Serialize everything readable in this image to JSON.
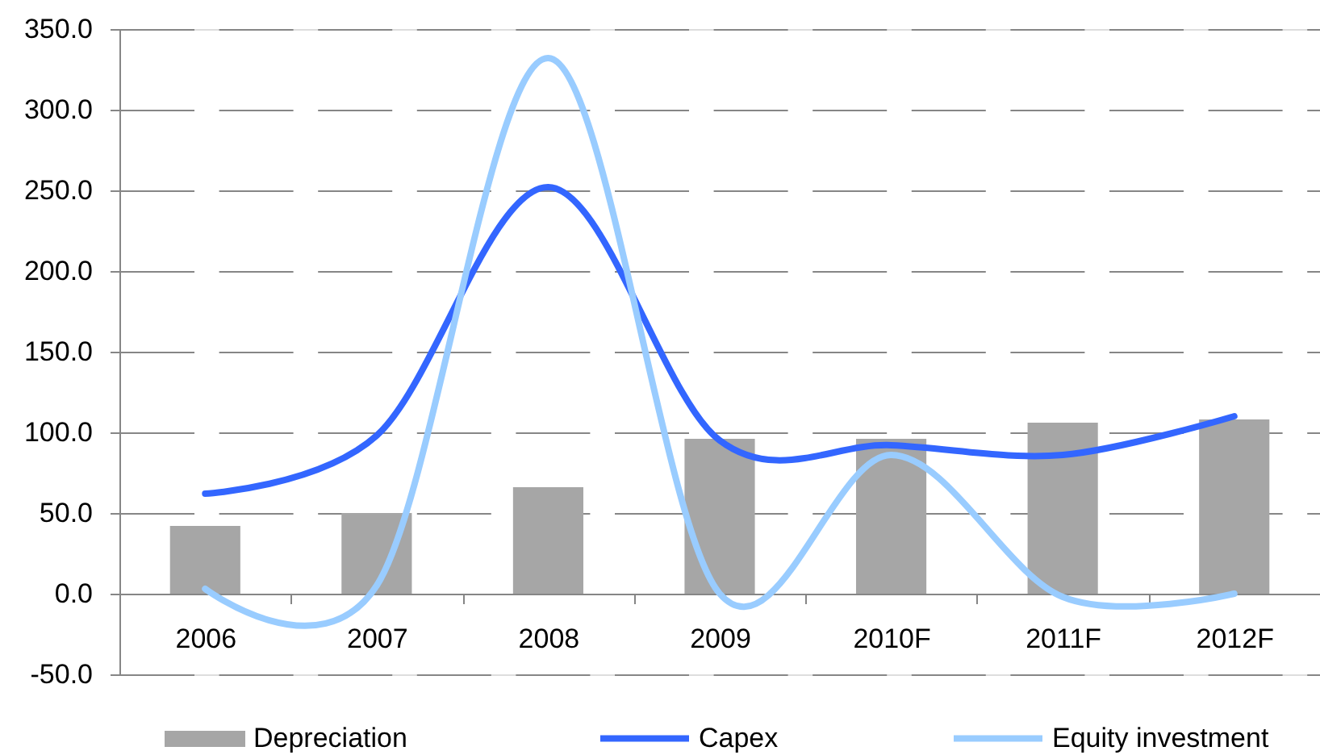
{
  "chart_data": {
    "type": "bar",
    "categories": [
      "2006",
      "2007",
      "2008",
      "2009",
      "2010F",
      "2011F",
      "2012F"
    ],
    "series": [
      {
        "name": "Depreciation",
        "color": "#a6a6a6",
        "values": [
          42,
          50,
          66,
          96,
          96,
          106,
          108
        ]
      },
      {
        "name": "Capex",
        "type": "line",
        "color": "#3366ff",
        "values": [
          62,
          98,
          252,
          95,
          92,
          86,
          110
        ]
      },
      {
        "name": "Equity investment",
        "type": "line",
        "color": "#99ccff",
        "values": [
          3,
          5,
          332,
          0,
          86,
          -2,
          0
        ]
      }
    ],
    "ylim": [
      -50,
      350
    ],
    "yticks": [
      {
        "value": -50,
        "label": "-50.0"
      },
      {
        "value": 0,
        "label": "0.0"
      },
      {
        "value": 50,
        "label": "50.0"
      },
      {
        "value": 100,
        "label": "100.0"
      },
      {
        "value": 150,
        "label": "150.0"
      },
      {
        "value": 200,
        "label": "200.0"
      },
      {
        "value": 250,
        "label": "250.0"
      },
      {
        "value": 300,
        "label": "300.0"
      },
      {
        "value": 350,
        "label": "350.0"
      }
    ],
    "grid": "y",
    "legend": "bottom",
    "marker": "none",
    "line_style": "solid"
  }
}
